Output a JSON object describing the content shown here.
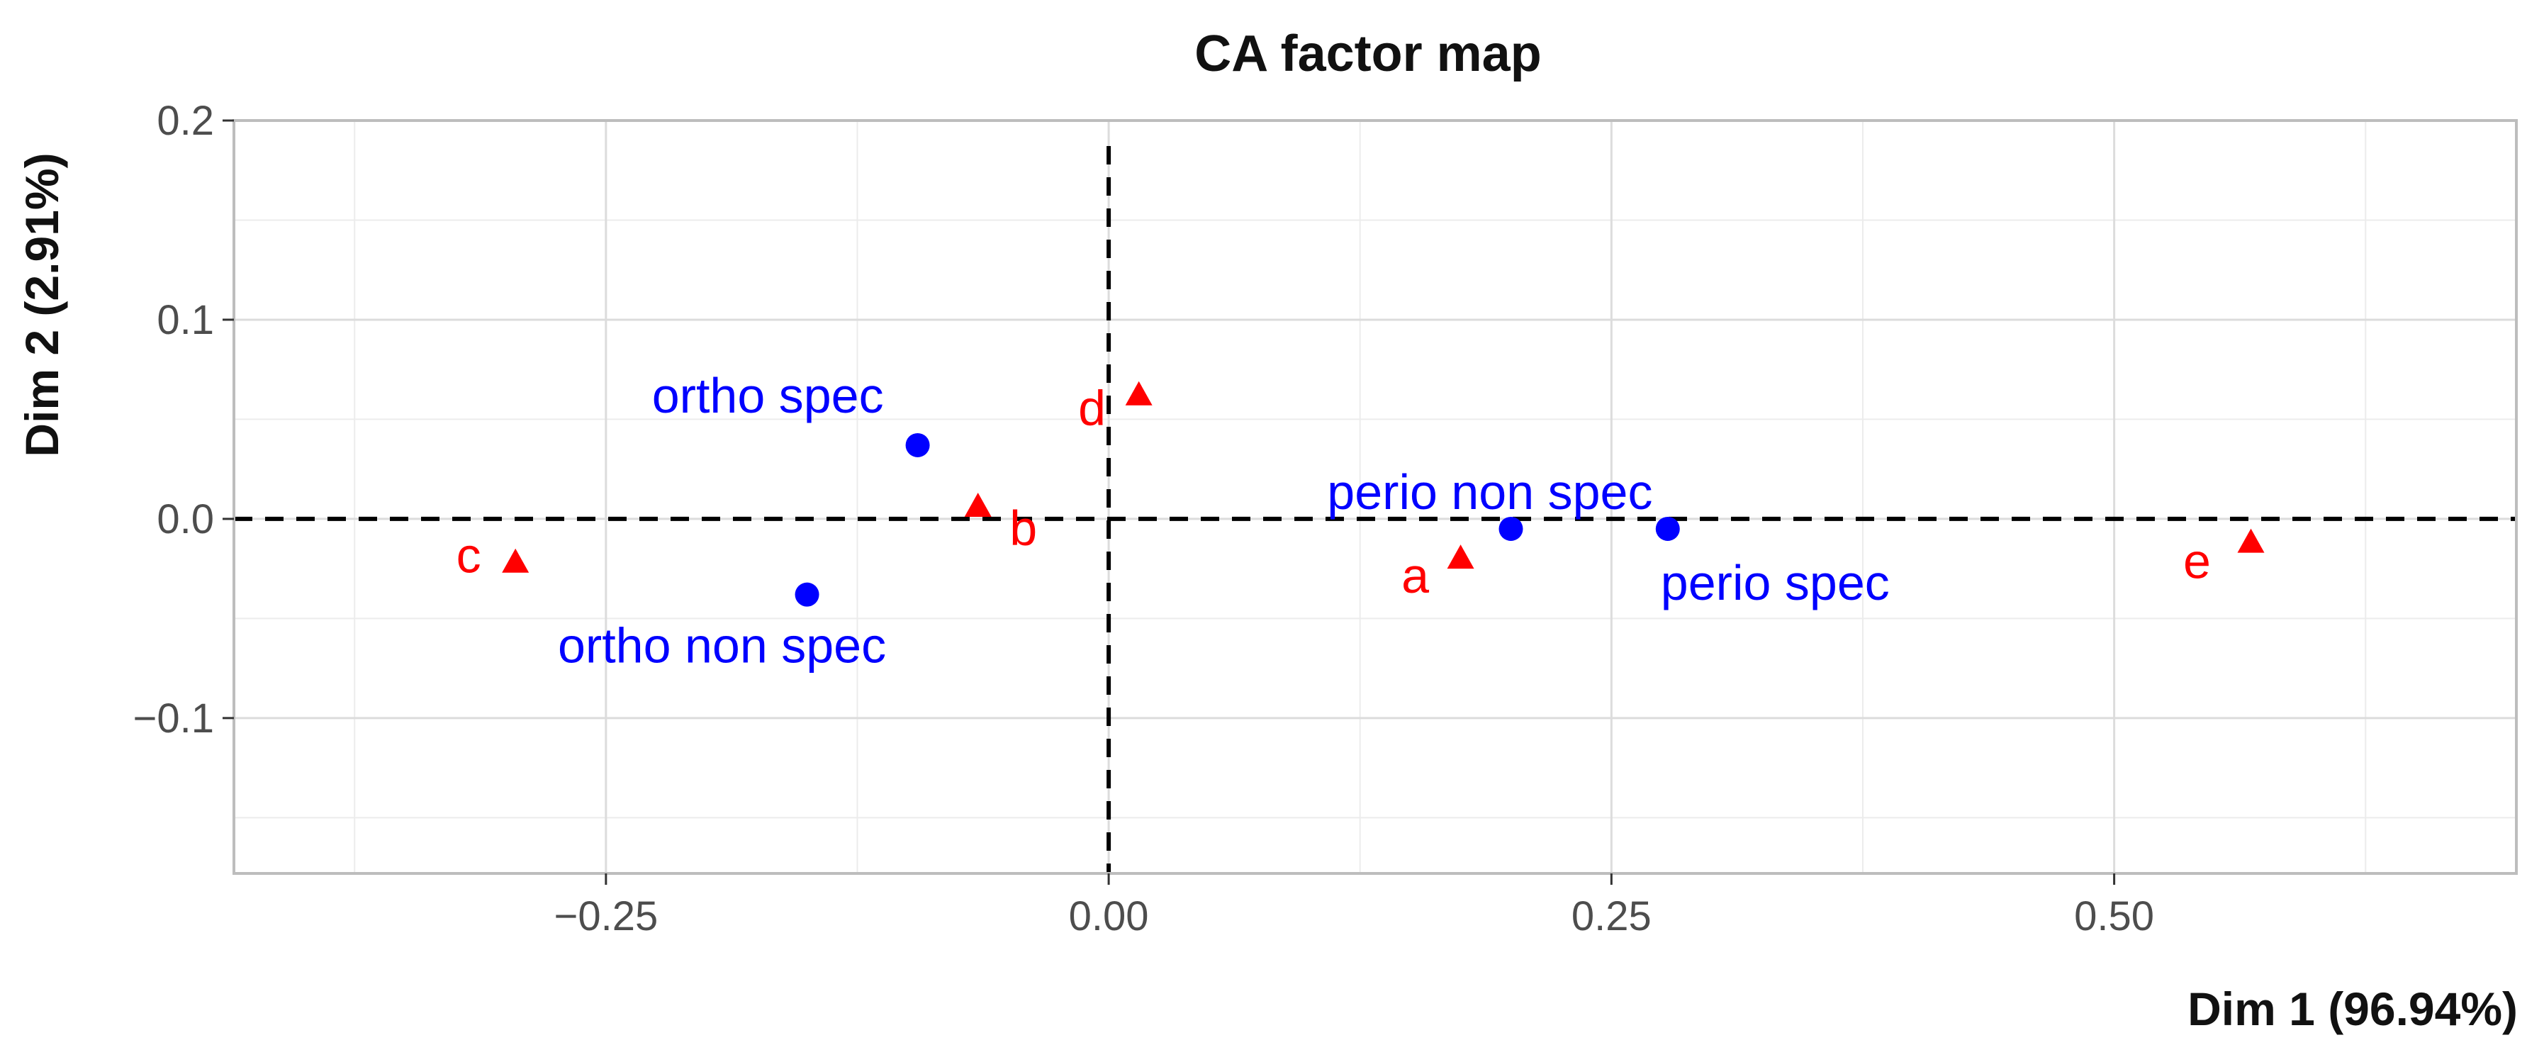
{
  "chart_data": {
    "type": "scatter",
    "title": "CA factor map",
    "xlabel": "Dim 1 (96.94%)",
    "ylabel": "Dim 2 (2.91%)",
    "xlim": [
      -0.435,
      0.7
    ],
    "ylim": [
      -0.178,
      0.2
    ],
    "x_ticks": [
      -0.25,
      0.0,
      0.25,
      0.5
    ],
    "x_tick_labels": [
      "−0.25",
      "0.00",
      "0.25",
      "0.50"
    ],
    "y_ticks": [
      -0.1,
      0.0,
      0.1,
      0.2
    ],
    "y_tick_labels": [
      "−0.1",
      "0.0",
      "0.1",
      "0.2"
    ],
    "grid": true,
    "reference_lines": {
      "x": 0,
      "y": 0,
      "style": "dashed"
    },
    "series": [
      {
        "marker": "circle",
        "color": "#0000ff",
        "points": [
          {
            "label": "ortho spec",
            "x": -0.095,
            "y": 0.037
          },
          {
            "label": "ortho non spec",
            "x": -0.15,
            "y": -0.038
          },
          {
            "label": "perio non spec",
            "x": 0.2,
            "y": -0.005
          },
          {
            "label": "perio spec",
            "x": 0.278,
            "y": -0.005
          }
        ]
      },
      {
        "marker": "triangle",
        "color": "#ff0000",
        "points": [
          {
            "label": "a",
            "x": 0.175,
            "y": -0.02
          },
          {
            "label": "b",
            "x": -0.065,
            "y": 0.006
          },
          {
            "label": "c",
            "x": -0.295,
            "y": -0.022
          },
          {
            "label": "d",
            "x": 0.015,
            "y": 0.062
          },
          {
            "label": "e",
            "x": 0.568,
            "y": -0.012
          }
        ]
      }
    ]
  }
}
